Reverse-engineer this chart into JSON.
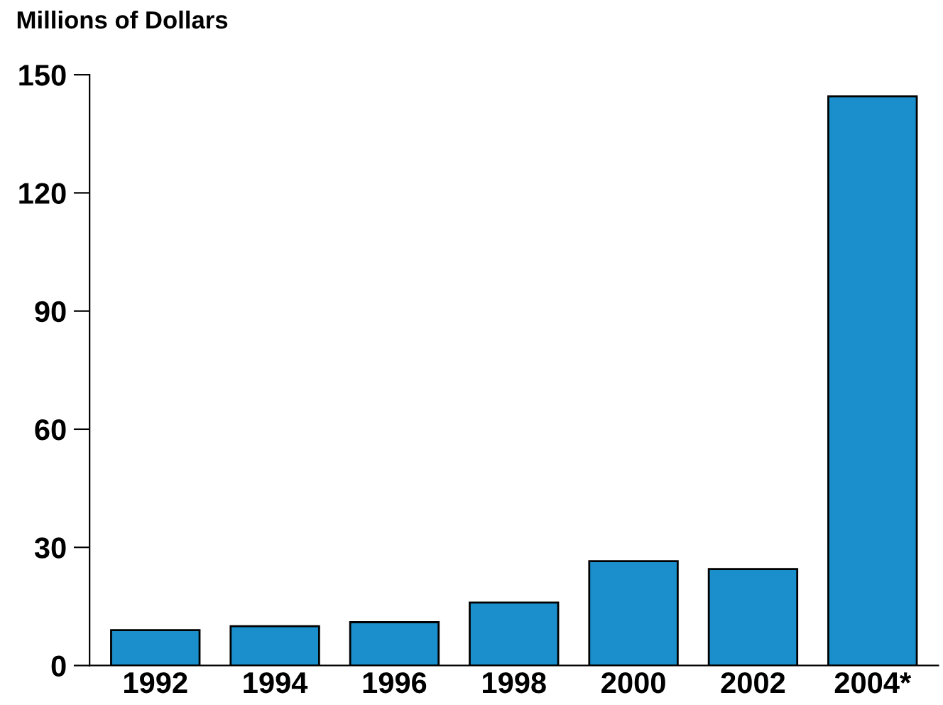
{
  "chart_data": {
    "type": "bar",
    "ylabel": "Millions of Dollars",
    "categories": [
      "1992",
      "1994",
      "1996",
      "1998",
      "2000",
      "2002",
      "2004*"
    ],
    "values": [
      9,
      10,
      11,
      16,
      26.5,
      24.5,
      144.5
    ],
    "color": "#1a8fcb",
    "ylim": [
      0,
      150
    ],
    "yticks": [
      0,
      30,
      60,
      90,
      120,
      150
    ],
    "grid": false,
    "legend": false
  }
}
